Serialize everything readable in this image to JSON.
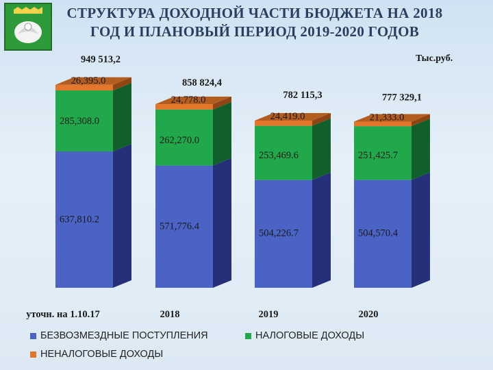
{
  "title_line1": "СТРУКТУРА ДОХОДНОЙ ЧАСТИ БЮДЖЕТА НА 2018",
  "title_line2": "ГОД И ПЛАНОВЫЙ ПЕРИОД 2019-2020 ГОДОВ",
  "unit": "Тыс.руб.",
  "colors": {
    "bezvozmezdnye": "#4a63c4",
    "nalogovye": "#21a84a",
    "nenalogovye": "#e3762a",
    "logo_bg": "#2f9a3a"
  },
  "chart_data": {
    "type": "bar",
    "stacked": true,
    "three_d": true,
    "categories": [
      "уточн. на 1.10.17",
      "2018",
      "2019",
      "2020"
    ],
    "totals": [
      "949 513,2",
      "858 824,4",
      "782 115,3",
      "777 329,1"
    ],
    "series": [
      {
        "name": "БЕЗВОЗМЕЗДНЫЕ ПОСТУПЛЕНИЯ",
        "values": [
          637810.2,
          571776.4,
          504226.7,
          504570.4
        ],
        "labels": [
          "637,810.2",
          "571,776.4",
          "504,226.7",
          "504,570.4"
        ]
      },
      {
        "name": "НАЛОГОВЫЕ ДОХОДЫ",
        "values": [
          285308.0,
          262270.0,
          253469.6,
          251425.7
        ],
        "labels": [
          "285,308.0",
          "262,270.0",
          "253,469.6",
          "251,425.7"
        ]
      },
      {
        "name": "НЕНАЛОГОВЫЕ ДОХОДЫ",
        "values": [
          26395.0,
          24778.0,
          24419.0,
          21333.0
        ],
        "labels": [
          "26,395.0",
          "24,778.0",
          "24,419.0",
          "21,333.0"
        ]
      }
    ],
    "legend_position": "bottom-left",
    "grid": false
  }
}
